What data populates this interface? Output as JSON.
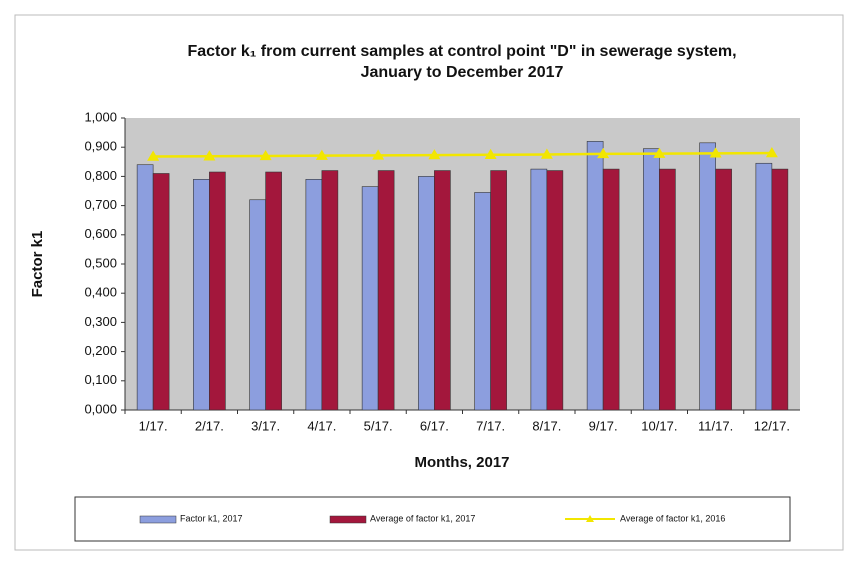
{
  "chart_data": {
    "type": "bar",
    "title": [
      "Factor k₁ from current samples at control point \"D\" in sewerage system,",
      "January to December 2017"
    ],
    "xlabel": "Months, 2017",
    "ylabel": "Factor k1",
    "categories": [
      "1/17.",
      "2/17.",
      "3/17.",
      "4/17.",
      "5/17.",
      "6/17.",
      "7/17.",
      "8/17.",
      "9/17.",
      "10/17.",
      "11/17.",
      "12/17."
    ],
    "series": [
      {
        "name": "Factor k1, 2017",
        "type": "bar",
        "color": "#8c9ede",
        "values": [
          0.84,
          0.79,
          0.72,
          0.79,
          0.765,
          0.8,
          0.745,
          0.825,
          0.92,
          0.895,
          0.915,
          0.845
        ]
      },
      {
        "name": "Average of factor k1, 2017",
        "type": "bar",
        "color": "#a3173c",
        "values": [
          0.81,
          0.815,
          0.815,
          0.82,
          0.82,
          0.82,
          0.82,
          0.82,
          0.825,
          0.825,
          0.825,
          0.825
        ]
      },
      {
        "name": "Average of factor k1, 2016",
        "type": "line",
        "color": "#f2e600",
        "values": [
          0.868,
          0.869,
          0.87,
          0.871,
          0.872,
          0.873,
          0.874,
          0.875,
          0.877,
          0.878,
          0.879,
          0.88
        ]
      }
    ],
    "ylim": [
      0,
      1
    ],
    "yticks": [
      {
        "value": 0,
        "label": "0,000"
      },
      {
        "value": 0.1,
        "label": "0,100"
      },
      {
        "value": 0.2,
        "label": "0,200"
      },
      {
        "value": 0.3,
        "label": "0,300"
      },
      {
        "value": 0.4,
        "label": "0,400"
      },
      {
        "value": 0.5,
        "label": "0,500"
      },
      {
        "value": 0.6,
        "label": "0,600"
      },
      {
        "value": 0.7,
        "label": "0,700"
      },
      {
        "value": 0.8,
        "label": "0,800"
      },
      {
        "value": 0.9,
        "label": "0,900"
      },
      {
        "value": 1,
        "label": "1,000"
      }
    ],
    "legend": "bottom"
  }
}
